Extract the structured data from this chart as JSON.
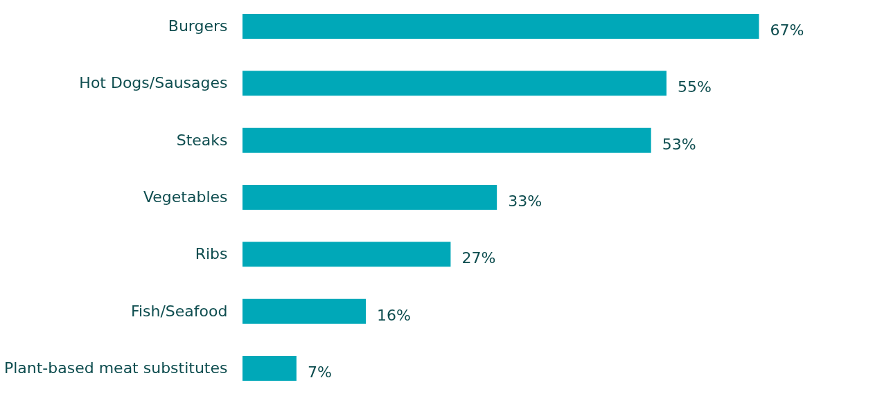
{
  "chart_data": {
    "type": "bar",
    "orientation": "horizontal",
    "categories": [
      "Burgers",
      "Hot Dogs/Sausages",
      "Steaks",
      "Vegetables",
      "Ribs",
      "Fish/Seafood",
      "Plant-based meat substitutes"
    ],
    "values": [
      67,
      55,
      53,
      33,
      27,
      16,
      7
    ],
    "value_labels": [
      "67%",
      "55%",
      "53%",
      "33%",
      "27%",
      "16%",
      "7%"
    ],
    "color": "#00a8b8",
    "grid": false
  }
}
